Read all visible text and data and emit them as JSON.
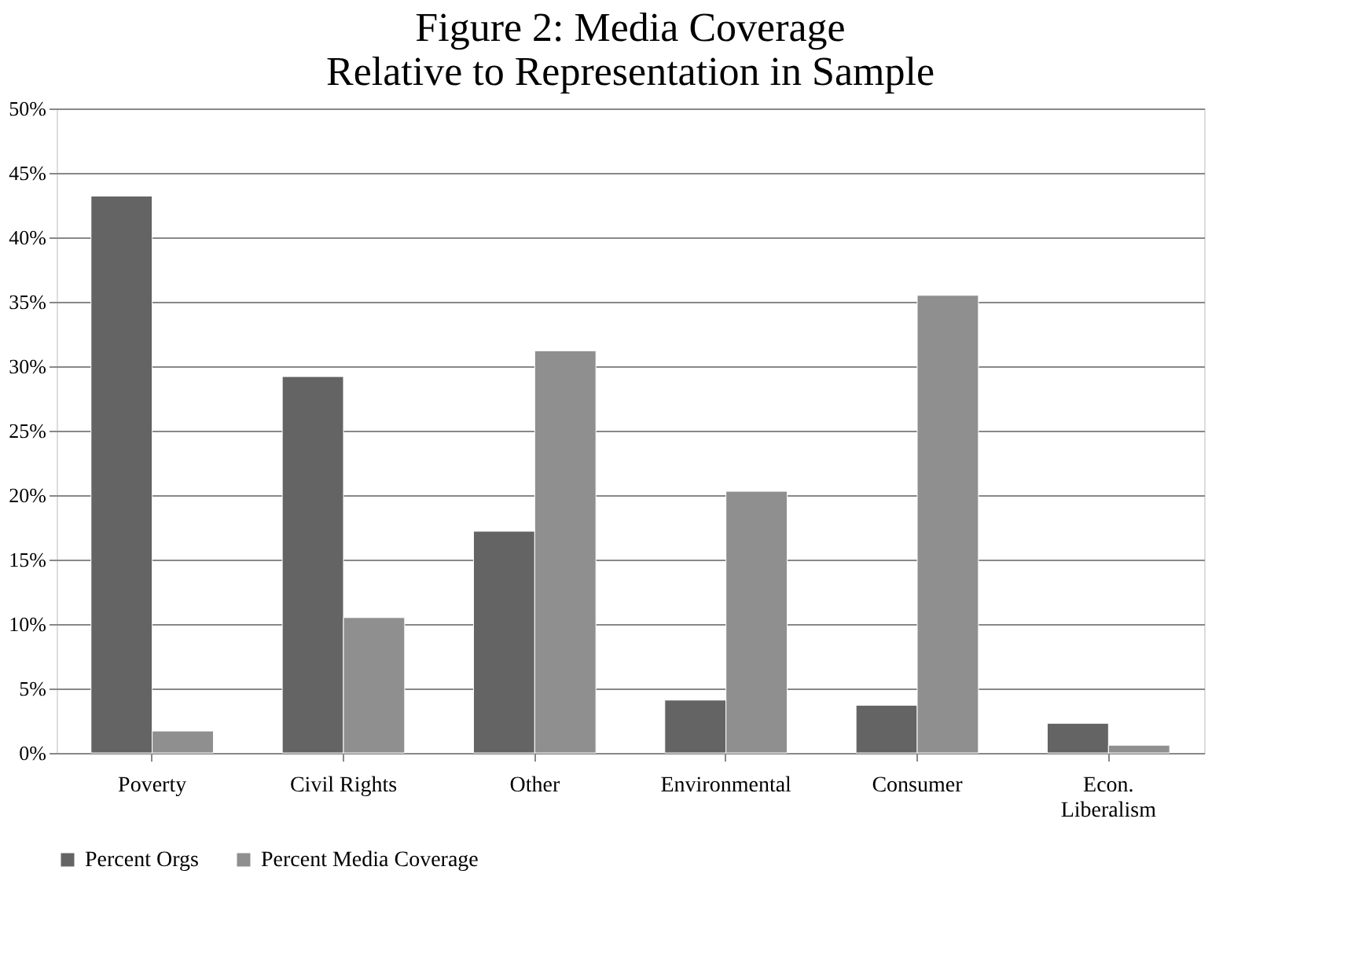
{
  "chart_data": {
    "type": "bar",
    "title": [
      "Figure 2: Media Coverage",
      "Relative to Representation in Sample"
    ],
    "categories": [
      "Poverty",
      "Civil Rights",
      "Other",
      "Environmental",
      "Consumer",
      "Econ. Liberalism"
    ],
    "series": [
      {
        "name": "Percent Orgs",
        "color": "#646464",
        "values": [
          43.2,
          29.2,
          17.2,
          4.1,
          3.7,
          2.3
        ]
      },
      {
        "name": "Percent Media Coverage",
        "color": "#8f8f8f",
        "values": [
          1.7,
          10.5,
          31.2,
          20.3,
          35.5,
          0.6
        ]
      }
    ],
    "ylim": [
      0,
      50
    ],
    "yticks": [
      {
        "value": 0,
        "label": "0%"
      },
      {
        "value": 5,
        "label": "5%"
      },
      {
        "value": 10,
        "label": "10%"
      },
      {
        "value": 15,
        "label": "15%"
      },
      {
        "value": 20,
        "label": "20%"
      },
      {
        "value": 25,
        "label": "25%"
      },
      {
        "value": 30,
        "label": "30%"
      },
      {
        "value": 35,
        "label": "35%"
      },
      {
        "value": 40,
        "label": "40%"
      },
      {
        "value": 45,
        "label": "45%"
      },
      {
        "value": 50,
        "label": "50%"
      }
    ],
    "grid": "y",
    "legend": "bottom"
  }
}
